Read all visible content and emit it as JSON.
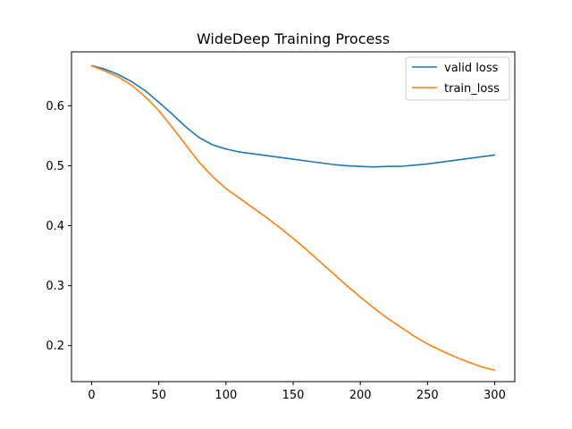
{
  "chart_data": {
    "type": "line",
    "title": "WideDeep Training Process",
    "xlabel": "",
    "ylabel": "",
    "xlim": [
      -15,
      315
    ],
    "ylim": [
      0.14,
      0.69
    ],
    "xticks": [
      0,
      50,
      100,
      150,
      200,
      250,
      300
    ],
    "yticks": [
      0.2,
      0.3,
      0.4,
      0.5,
      0.6
    ],
    "xtick_labels": [
      "0",
      "50",
      "100",
      "150",
      "200",
      "250",
      "300"
    ],
    "ytick_labels": [
      "0.2",
      "0.3",
      "0.4",
      "0.5",
      "0.6"
    ],
    "grid": false,
    "legend_position": "top-right",
    "x": [
      0,
      10,
      20,
      30,
      40,
      50,
      60,
      70,
      80,
      90,
      100,
      110,
      120,
      130,
      140,
      150,
      160,
      170,
      180,
      190,
      200,
      210,
      220,
      230,
      240,
      250,
      260,
      270,
      280,
      290,
      300
    ],
    "series": [
      {
        "name": "valid loss",
        "color": "#1f77b4",
        "values": [
          0.667,
          0.661,
          0.652,
          0.64,
          0.625,
          0.606,
          0.586,
          0.565,
          0.547,
          0.535,
          0.528,
          0.523,
          0.52,
          0.517,
          0.514,
          0.511,
          0.508,
          0.505,
          0.502,
          0.5,
          0.499,
          0.498,
          0.499,
          0.499,
          0.501,
          0.503,
          0.506,
          0.509,
          0.512,
          0.515,
          0.518
        ]
      },
      {
        "name": "train_loss",
        "color": "#ff7f0e",
        "values": [
          0.667,
          0.658,
          0.648,
          0.634,
          0.615,
          0.592,
          0.564,
          0.535,
          0.506,
          0.482,
          0.462,
          0.446,
          0.43,
          0.414,
          0.397,
          0.379,
          0.36,
          0.34,
          0.32,
          0.3,
          0.281,
          0.263,
          0.246,
          0.231,
          0.216,
          0.203,
          0.192,
          0.182,
          0.173,
          0.165,
          0.159
        ]
      }
    ]
  }
}
